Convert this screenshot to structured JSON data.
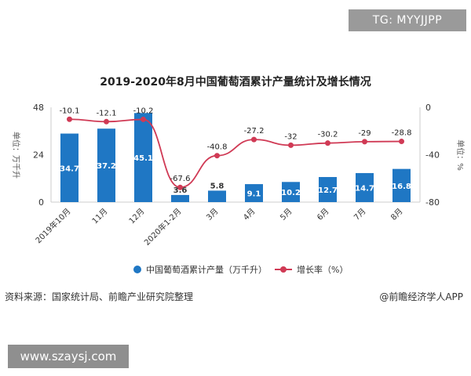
{
  "watermark_top": "TG: MYYJJPP",
  "watermark_bottom": "www.szaysj.com",
  "source": "资料来源：国家统计局、前瞻产业研究院整理",
  "credit": "@前瞻经济学人APP",
  "colors": {
    "bar": "#1f77c4",
    "line": "#d03a55"
  },
  "chart_data": {
    "type": "bar",
    "title": "2019-2020年8月中国葡萄酒累计产量统计及增长情况",
    "categories": [
      "2019年10月",
      "11月",
      "12月",
      "2020年1-2月",
      "3月",
      "4月",
      "5月",
      "6月",
      "7月",
      "8月"
    ],
    "ylabel": "单位：万千升",
    "y2label": "单位：%",
    "ylim": [
      0,
      48
    ],
    "yticks": [
      0,
      24,
      48
    ],
    "y2lim": [
      -80,
      0
    ],
    "y2ticks": [
      0,
      -40,
      -80
    ],
    "legend_position": "bottom",
    "grid": false,
    "series": [
      {
        "name": "中国葡萄酒累计产量（万千升）",
        "type": "bar",
        "axis": "left",
        "values": [
          34.7,
          37.2,
          45.1,
          3.6,
          5.8,
          9.1,
          10.2,
          12.7,
          14.7,
          16.8
        ]
      },
      {
        "name": "增长率（%）",
        "type": "line",
        "axis": "right",
        "values": [
          -10.1,
          -12.1,
          -10.2,
          -67.6,
          -40.8,
          -27.2,
          -32,
          -30.2,
          -29,
          -28.8
        ]
      }
    ]
  }
}
